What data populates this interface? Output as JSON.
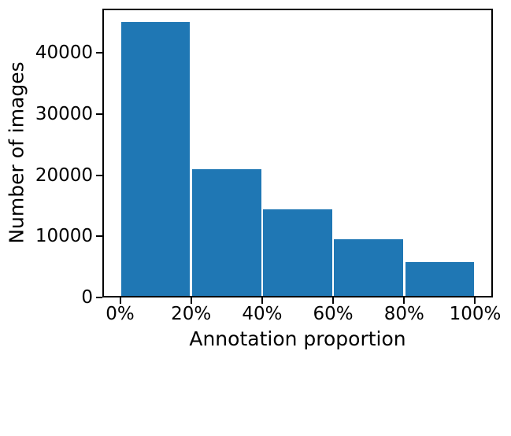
{
  "chart_data": {
    "type": "bar",
    "title": "",
    "xlabel": "Annotation proportion",
    "ylabel": "Number of images",
    "categories": [
      "0-20%",
      "20-40%",
      "40-60%",
      "60-80%",
      "80-100%"
    ],
    "bin_centers": [
      10,
      30,
      50,
      70,
      90
    ],
    "bin_width": 20,
    "bar_width_fraction": 0.97,
    "values": [
      45000,
      21000,
      14400,
      9500,
      5800
    ],
    "x_ticks": {
      "values": [
        0,
        20,
        40,
        60,
        80,
        100
      ],
      "labels": [
        "0%",
        "20%",
        "40%",
        "60%",
        "80%",
        "100%"
      ]
    },
    "y_ticks": {
      "values": [
        0,
        10000,
        20000,
        30000,
        40000
      ],
      "labels": [
        "0",
        "10000",
        "20000",
        "30000",
        "40000"
      ]
    },
    "xlim": [
      -5,
      105
    ],
    "ylim": [
      0,
      47250
    ],
    "bar_color": "#1f77b4",
    "axis_color": "#000000",
    "background_color": "#ffffff",
    "grid": false,
    "legend": null
  }
}
